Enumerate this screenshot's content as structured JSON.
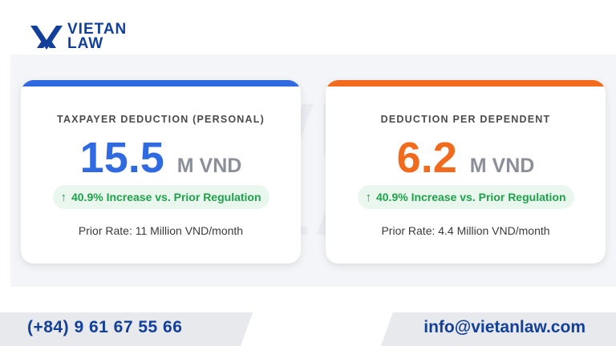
{
  "brand": {
    "line1": "VIETAN",
    "line2": "LAW",
    "primary_color": "#123f9a"
  },
  "watermark": {
    "line1": "VIETAN",
    "line2": "LAW"
  },
  "cards": [
    {
      "title": "TAXPAYER DEDUCTION (PERSONAL)",
      "value": "15.5",
      "unit": "M VND",
      "change_arrow": "↑",
      "change_text": "40.9% Increase vs. Prior Regulation",
      "prior": "Prior Rate: 11 Million VND/month",
      "accent_color": "#2f6ae0"
    },
    {
      "title": "DEDUCTION PER DEPENDENT",
      "value": "6.2",
      "unit": "M VND",
      "change_arrow": "↑",
      "change_text": "40.9% Increase vs. Prior Regulation",
      "prior": "Prior Rate: 4.4 Million VND/month",
      "accent_color": "#f26a1b"
    }
  ],
  "footer": {
    "phone": "(+84) 9 61 67 55 66",
    "email": "info@vietanlaw.com"
  }
}
